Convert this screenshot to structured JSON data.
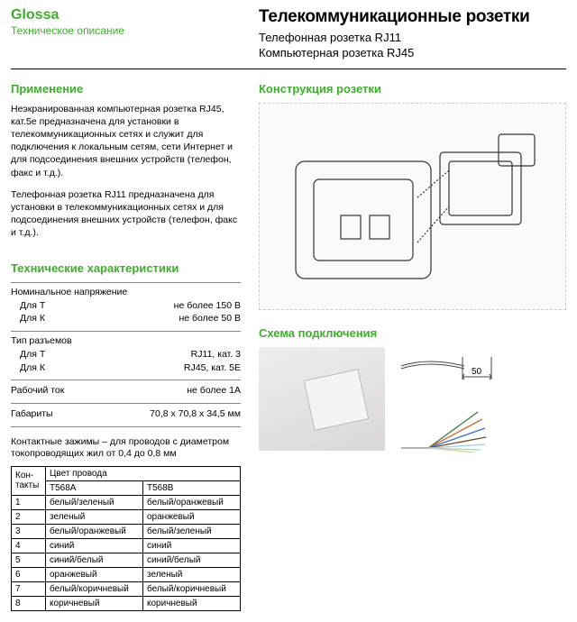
{
  "brand": {
    "name": "Glossa",
    "subtitle": "Техническое описание"
  },
  "title": {
    "main": "Телекоммуникационные розетки",
    "sub1": "Телефонная розетка RJ11",
    "sub2": "Компьютерная розетка RJ45"
  },
  "sections": {
    "application_h": "Применение",
    "construction_h": "Конструкция розетки",
    "specs_h": "Технические характеристики",
    "schema_h": "Схема подключения"
  },
  "paragraphs": {
    "p1": "Неэкранированная компьютерная розетка RJ45, кат.5е предназначена для установки в телекоммуникационных сетях и служит для подключения к локальным сетям, сети Интернет и для подсоединения внешних устройств (телефон, факс и т.д.).",
    "p2": "Телефонная розетка RJ11 предназначена для установки в телекоммуникационных сетях и для подсоединения внешних устройств (телефон, факс и т.д.)."
  },
  "specs": {
    "voltage_label": "Номинальное напряжение",
    "voltage_rows": [
      {
        "l": "Для Т",
        "v": "не более 150 В"
      },
      {
        "l": "Для К",
        "v": "не более 50 В"
      }
    ],
    "conn_label": "Тип разъемов",
    "conn_rows": [
      {
        "l": "Для Т",
        "v": "RJ11, кат. 3"
      },
      {
        "l": "Для К",
        "v": "RJ45, кат. 5Е"
      }
    ],
    "current": {
      "l": "Рабочий ток",
      "v": "не более 1А"
    },
    "dims": {
      "l": "Габариты",
      "v": "70,8 х 70,8 х 34,5 мм"
    }
  },
  "note": "Контактные зажимы – для проводов с диаметром токопроводящих жил от 0,4 до 0,8 мм",
  "table": {
    "headers": {
      "c0": "Кон-такты",
      "c1a": "Цвет провода",
      "c1": "T568A",
      "c2": "T568B"
    },
    "rows": [
      {
        "n": "1",
        "a": "белый/зеленый",
        "b": "белый/оранжевый"
      },
      {
        "n": "2",
        "a": "зеленый",
        "b": "оранжевый"
      },
      {
        "n": "3",
        "a": "белый/оранжевый",
        "b": "белый/зеленый"
      },
      {
        "n": "4",
        "a": "синий",
        "b": "синий"
      },
      {
        "n": "5",
        "a": "синий/белый",
        "b": "синий/белый"
      },
      {
        "n": "6",
        "a": "оранжевый",
        "b": "зеленый"
      },
      {
        "n": "7",
        "a": "белый/коричневый",
        "b": "белый/коричневый"
      },
      {
        "n": "8",
        "a": "коричневый",
        "b": "коричневый"
      }
    ]
  },
  "schema": {
    "dim_value": "50"
  },
  "colors": {
    "accent": "#3dae2b",
    "text": "#000000"
  }
}
